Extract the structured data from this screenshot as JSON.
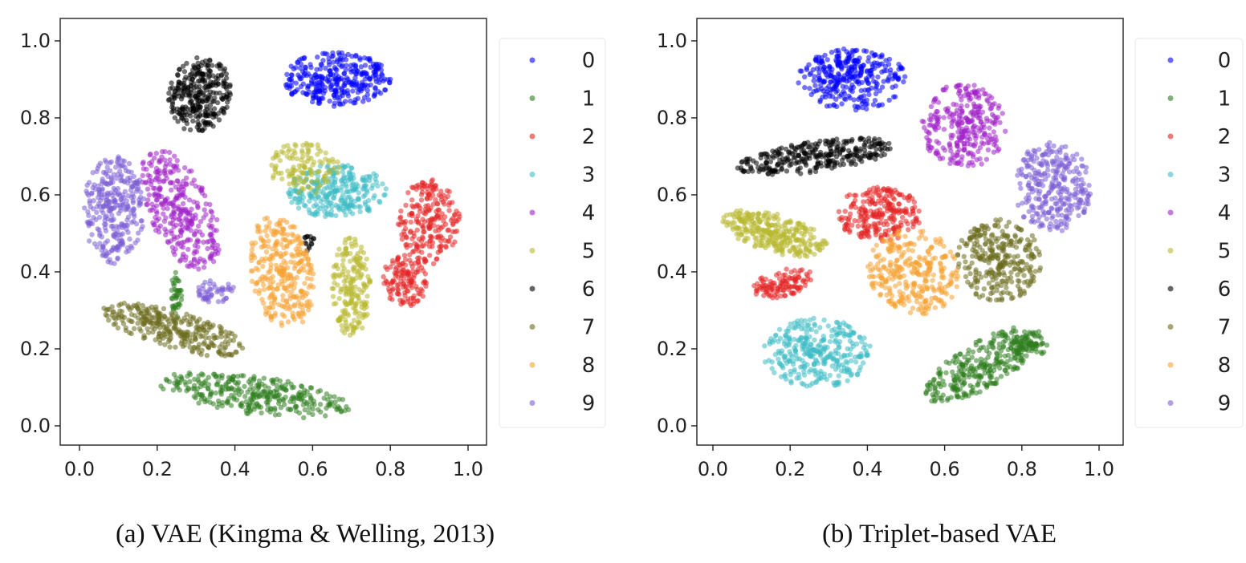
{
  "chart_data": [
    {
      "type": "scatter",
      "caption": "(a) VAE (Kingma & Welling, 2013)",
      "xlim": [
        0.0,
        1.0
      ],
      "ylim": [
        0.0,
        1.0
      ],
      "xticks": [
        "0.0",
        "0.2",
        "0.4",
        "0.6",
        "0.8",
        "1.0"
      ],
      "yticks": [
        "0.0",
        "0.2",
        "0.4",
        "0.6",
        "0.8",
        "1.0"
      ],
      "legend": [
        "0",
        "1",
        "2",
        "3",
        "4",
        "5",
        "6",
        "7",
        "8",
        "9"
      ],
      "legend_position": "right",
      "colors": [
        "#0000ff",
        "#2e7d1e",
        "#e32222",
        "#3cbcc4",
        "#a020c8",
        "#b8b830",
        "#000000",
        "#6b6b1e",
        "#f5a030",
        "#7b5cd6"
      ],
      "series": [
        {
          "name": "0",
          "clusters": [
            {
              "cx": 0.66,
              "cy": 0.9,
              "rx": 0.14,
              "ry": 0.07,
              "n": 320
            }
          ]
        },
        {
          "name": "1",
          "clusters": [
            {
              "cx": 0.45,
              "cy": 0.08,
              "rx": 0.25,
              "ry": 0.05,
              "rot": -8,
              "n": 320
            },
            {
              "cx": 0.25,
              "cy": 0.34,
              "rx": 0.015,
              "ry": 0.06,
              "n": 40
            }
          ]
        },
        {
          "name": "2",
          "clusters": [
            {
              "cx": 0.9,
              "cy": 0.53,
              "rx": 0.08,
              "ry": 0.11,
              "n": 220
            },
            {
              "cx": 0.84,
              "cy": 0.38,
              "rx": 0.06,
              "ry": 0.07,
              "n": 130
            }
          ]
        },
        {
          "name": "3",
          "clusters": [
            {
              "cx": 0.66,
              "cy": 0.61,
              "rx": 0.13,
              "ry": 0.07,
              "n": 280
            }
          ]
        },
        {
          "name": "4",
          "clusters": [
            {
              "cx": 0.26,
              "cy": 0.56,
              "rx": 0.08,
              "ry": 0.17,
              "rot": 25,
              "n": 320
            }
          ]
        },
        {
          "name": "5",
          "clusters": [
            {
              "cx": 0.7,
              "cy": 0.36,
              "rx": 0.05,
              "ry": 0.13,
              "n": 200
            },
            {
              "cx": 0.58,
              "cy": 0.67,
              "rx": 0.09,
              "ry": 0.07,
              "n": 120
            }
          ]
        },
        {
          "name": "6",
          "clusters": [
            {
              "cx": 0.31,
              "cy": 0.86,
              "rx": 0.08,
              "ry": 0.1,
              "rot": -15,
              "n": 300
            },
            {
              "cx": 0.59,
              "cy": 0.48,
              "rx": 0.015,
              "ry": 0.03,
              "n": 15
            }
          ]
        },
        {
          "name": "7",
          "clusters": [
            {
              "cx": 0.24,
              "cy": 0.25,
              "rx": 0.19,
              "ry": 0.05,
              "rot": -15,
              "n": 300
            }
          ]
        },
        {
          "name": "8",
          "clusters": [
            {
              "cx": 0.52,
              "cy": 0.4,
              "rx": 0.08,
              "ry": 0.15,
              "rot": 10,
              "n": 300
            }
          ]
        },
        {
          "name": "9",
          "clusters": [
            {
              "cx": 0.09,
              "cy": 0.56,
              "rx": 0.08,
              "ry": 0.14,
              "n": 300
            },
            {
              "cx": 0.35,
              "cy": 0.35,
              "rx": 0.05,
              "ry": 0.03,
              "n": 50
            }
          ]
        }
      ]
    },
    {
      "type": "scatter",
      "caption": "(b) Triplet-based VAE",
      "xlim": [
        0.0,
        1.0
      ],
      "ylim": [
        0.0,
        1.0
      ],
      "xticks": [
        "0.0",
        "0.2",
        "0.4",
        "0.6",
        "0.8",
        "1.0"
      ],
      "yticks": [
        "0.0",
        "0.2",
        "0.4",
        "0.6",
        "0.8",
        "1.0"
      ],
      "legend": [
        "0",
        "1",
        "2",
        "3",
        "4",
        "5",
        "6",
        "7",
        "8",
        "9"
      ],
      "legend_position": "right",
      "colors": [
        "#0000ff",
        "#2e7d1e",
        "#e32222",
        "#3cbcc4",
        "#a020c8",
        "#b8b830",
        "#000000",
        "#6b6b1e",
        "#f5a030",
        "#7b5cd6"
      ],
      "series": [
        {
          "name": "0",
          "clusters": [
            {
              "cx": 0.36,
              "cy": 0.9,
              "rx": 0.14,
              "ry": 0.08,
              "n": 320
            }
          ]
        },
        {
          "name": "1",
          "clusters": [
            {
              "cx": 0.7,
              "cy": 0.16,
              "rx": 0.17,
              "ry": 0.06,
              "rot": 30,
              "n": 300
            },
            {
              "cx": 0.82,
              "cy": 0.21,
              "rx": 0.05,
              "ry": 0.03,
              "n": 60
            }
          ]
        },
        {
          "name": "2",
          "clusters": [
            {
              "cx": 0.43,
              "cy": 0.55,
              "rx": 0.11,
              "ry": 0.07,
              "n": 240
            },
            {
              "cx": 0.18,
              "cy": 0.37,
              "rx": 0.08,
              "ry": 0.035,
              "rot": 15,
              "n": 110
            }
          ]
        },
        {
          "name": "3",
          "clusters": [
            {
              "cx": 0.27,
              "cy": 0.19,
              "rx": 0.14,
              "ry": 0.09,
              "n": 320
            }
          ]
        },
        {
          "name": "4",
          "clusters": [
            {
              "cx": 0.65,
              "cy": 0.78,
              "rx": 0.11,
              "ry": 0.11,
              "n": 300
            }
          ]
        },
        {
          "name": "5",
          "clusters": [
            {
              "cx": 0.16,
              "cy": 0.5,
              "rx": 0.14,
              "ry": 0.05,
              "rot": -15,
              "n": 300
            }
          ]
        },
        {
          "name": "6",
          "clusters": [
            {
              "cx": 0.27,
              "cy": 0.7,
              "rx": 0.21,
              "ry": 0.04,
              "rot": 8,
              "n": 300
            }
          ]
        },
        {
          "name": "7",
          "clusters": [
            {
              "cx": 0.74,
              "cy": 0.43,
              "rx": 0.11,
              "ry": 0.11,
              "n": 300
            }
          ]
        },
        {
          "name": "8",
          "clusters": [
            {
              "cx": 0.52,
              "cy": 0.4,
              "rx": 0.12,
              "ry": 0.11,
              "rot": -20,
              "n": 300
            }
          ]
        },
        {
          "name": "9",
          "clusters": [
            {
              "cx": 0.88,
              "cy": 0.62,
              "rx": 0.1,
              "ry": 0.12,
              "n": 300
            }
          ]
        }
      ]
    }
  ]
}
